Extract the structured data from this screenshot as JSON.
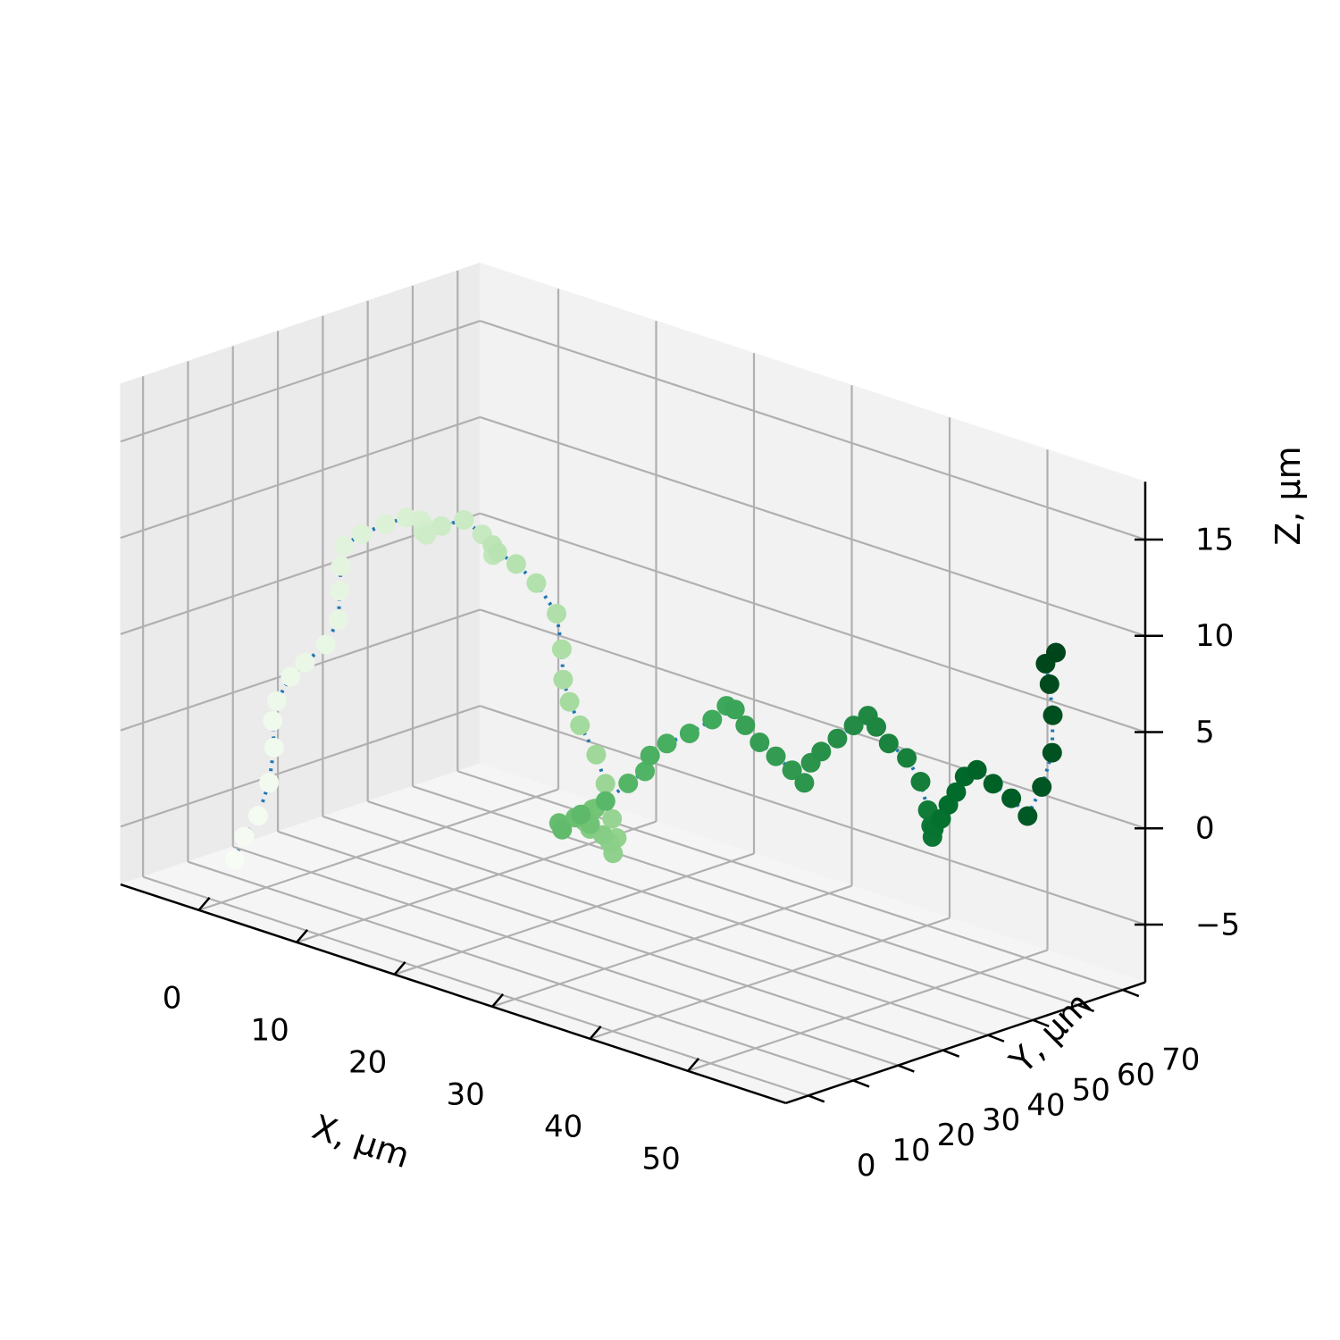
{
  "chart_data": {
    "type": "scatter3d",
    "title": "",
    "xlabel": "X, μm",
    "ylabel": "Y, μm",
    "zlabel": "Z, μm",
    "xlim": [
      -8,
      60
    ],
    "ylim": [
      -5,
      75
    ],
    "zlim": [
      -8,
      18
    ],
    "x_ticks": [
      0,
      10,
      20,
      30,
      40,
      50
    ],
    "y_ticks": [
      0,
      10,
      20,
      30,
      40,
      50,
      60,
      70
    ],
    "z_ticks": [
      -5,
      0,
      5,
      10,
      15
    ],
    "z_tick_labels": [
      "−5",
      "0",
      "5",
      "10",
      "15"
    ],
    "grid": true,
    "legend": "none",
    "line_color": "#1f77b4",
    "line_style": "dotted",
    "colormap": "Greens",
    "colormap_stops": [
      "#f7fcf5",
      "#e5f5e0",
      "#c7e9c0",
      "#a1d99b",
      "#74c476",
      "#41ab5d",
      "#238b45",
      "#006d2c",
      "#00441b"
    ],
    "pane_colors": {
      "left": "#ebebeb",
      "back": "#f2f2f2",
      "floor": "#f5f5f5"
    },
    "grid_color": "#b0b0b0",
    "series": [
      {
        "x": [
          0.0,
          0.5,
          1.0,
          1.2,
          0.8,
          0.2,
          -0.3,
          0.2,
          1.2,
          2.4,
          2.8,
          2.0,
          1.2,
          0.6,
          1.5,
          3.0,
          4.2,
          4.8,
          4.2,
          3.2,
          2.6,
          3.2,
          4.6,
          6.0,
          6.8,
          6.2,
          5.2,
          4.8,
          5.8,
          7.4,
          9.0,
          10.0,
          10.6,
          10.8,
          11.4,
          12.6,
          14.0,
          15.6,
          17.0,
          18.0,
          18.6,
          18.8,
          18.4,
          18.8,
          20.0,
          21.4,
          22.6,
          23.0,
          22.4,
          21.2,
          20.6,
          21.6,
          23.2,
          24.6,
          25.4,
          25.0,
          25.8,
          27.2,
          28.6,
          29.6,
          30.0,
          30.6,
          31.6,
          32.8,
          34.0,
          34.8,
          35.0,
          35.6,
          36.8,
          38.0,
          39.0,
          39.4,
          40.2,
          41.6,
          43.0,
          44.2,
          45.0,
          45.6,
          46.2,
          47.4,
          48.6,
          49.4,
          49.8,
          50.6,
          51.8,
          53.2,
          54.4,
          55.4,
          56.0,
          55.6,
          54.8,
          54.4,
          55.0
        ],
        "y": [
          3.0,
          4.0,
          6.0,
          8.0,
          10.0,
          11.0,
          13.0,
          15.0,
          16.0,
          18.0,
          20.0,
          22.0,
          24.0,
          26.0,
          28.0,
          30.0,
          32.0,
          34.0,
          36.0,
          38.0,
          40.0,
          42.0,
          44.0,
          45.0,
          46.0,
          47.0,
          49.0,
          51.0,
          53.0,
          54.0,
          55.0,
          54.0,
          53.0,
          54.0,
          55.0,
          56.0,
          55.0,
          53.0,
          51.0,
          48.0,
          46.0,
          44.0,
          42.0,
          40.0,
          38.0,
          36.0,
          34.0,
          32.0,
          30.0,
          29.0,
          31.0,
          33.0,
          35.0,
          37.0,
          39.0,
          41.0,
          43.0,
          45.0,
          47.0,
          48.0,
          49.0,
          50.0,
          51.0,
          52.0,
          53.0,
          54.0,
          55.0,
          56.0,
          57.0,
          58.0,
          59.0,
          60.0,
          61.0,
          62.0,
          62.0,
          61.0,
          60.0,
          59.0,
          58.0,
          57.0,
          56.0,
          56.0,
          57.0,
          58.0,
          59.0,
          60.0,
          61.0,
          62.0,
          63.0,
          64.0,
          65.0,
          65.0,
          66.0
        ],
        "z": [
          -6.0,
          -4.8,
          -3.8,
          -2.2,
          -0.6,
          0.6,
          1.4,
          2.6,
          3.4,
          4.4,
          5.6,
          6.8,
          7.8,
          8.6,
          9.2,
          9.8,
          10.2,
          10.0,
          9.4,
          8.8,
          8.4,
          8.8,
          9.2,
          8.6,
          7.8,
          7.4,
          7.6,
          7.0,
          6.4,
          5.6,
          4.2,
          2.6,
          1.2,
          0.0,
          -1.2,
          -2.6,
          -3.8,
          -5.2,
          -5.8,
          -6.2,
          -5.4,
          -4.8,
          -4.4,
          -3.8,
          -3.0,
          -2.4,
          -2.0,
          -2.6,
          -2.2,
          -2.6,
          -3.2,
          -2.4,
          -1.6,
          -0.6,
          0.0,
          0.6,
          1.2,
          1.8,
          2.6,
          3.4,
          3.2,
          2.4,
          1.6,
          1.0,
          0.4,
          -0.2,
          0.8,
          1.4,
          2.2,
          3.0,
          3.6,
          3.0,
          2.2,
          1.6,
          0.6,
          -0.6,
          -1.2,
          -1.6,
          -1.0,
          -0.2,
          0.8,
          1.6,
          2.4,
          2.8,
          2.2,
          1.6,
          0.8,
          2.4,
          4.2,
          6.0,
          7.4,
          8.4,
          9.0
        ]
      }
    ]
  }
}
